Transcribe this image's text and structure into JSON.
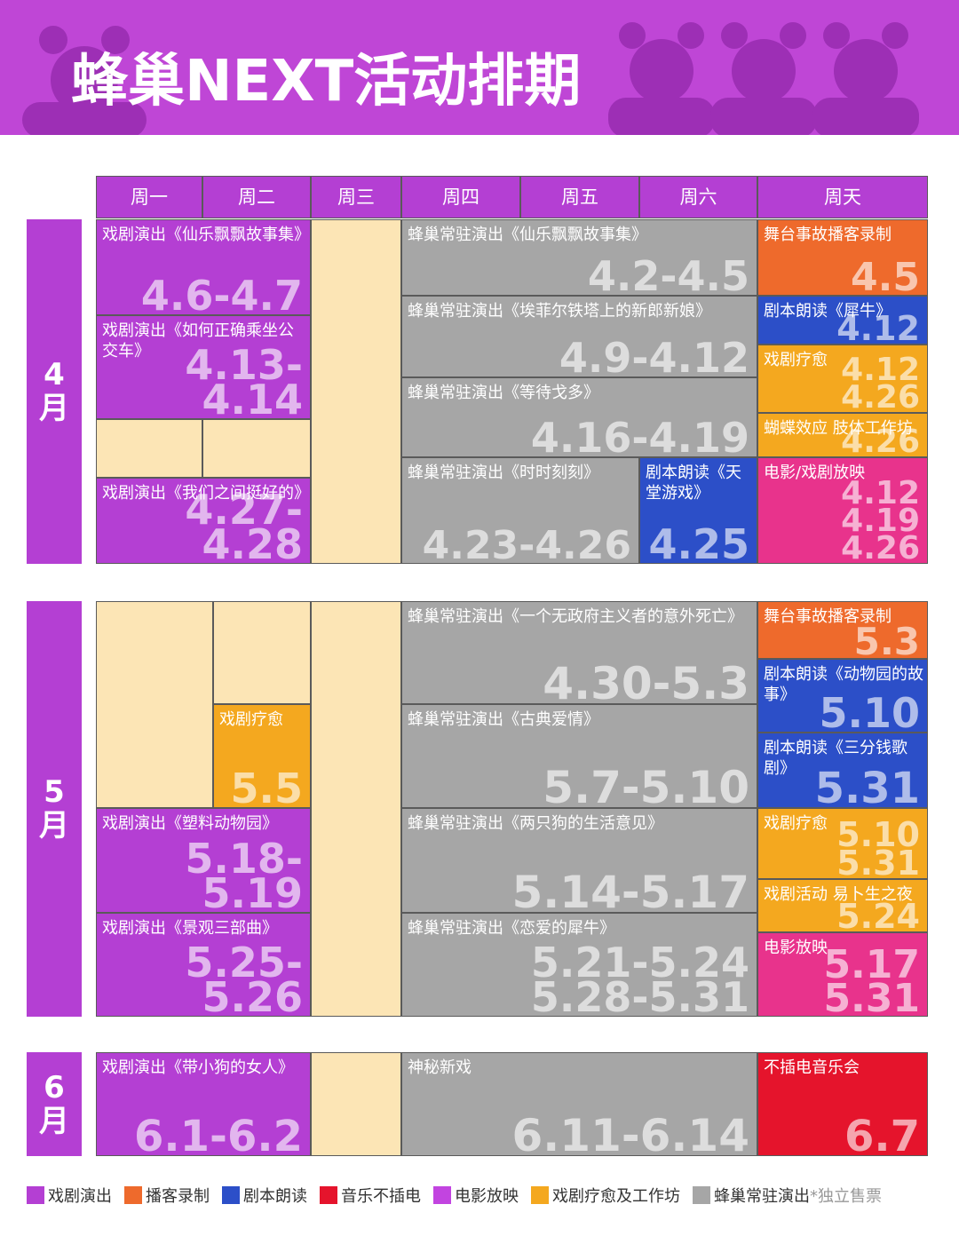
{
  "header": {
    "title": "蜂巢NEXT活动排期"
  },
  "weekdays": [
    "周一",
    "周二",
    "周三",
    "周四",
    "周五",
    "周六",
    "周天"
  ],
  "months": [
    {
      "label": "4月",
      "events": [
        {
          "title": "戏剧演出《仙乐飘飘故事集》",
          "dates": [
            "4.6-4.7"
          ]
        },
        {
          "title": "戏剧演出《如何正确乘坐公交车》",
          "dates": [
            "4.13-4.14"
          ]
        },
        {
          "title": "戏剧演出《我们之间挺好的》",
          "dates": [
            "4.27-4.28"
          ]
        },
        {
          "title": "蜂巢常驻演出《仙乐飘飘故事集》",
          "dates": [
            "4.2-4.5"
          ]
        },
        {
          "title": "蜂巢常驻演出《埃菲尔铁塔上的新郎新娘》",
          "dates": [
            "4.9-4.12"
          ]
        },
        {
          "title": "蜂巢常驻演出《等待戈多》",
          "dates": [
            "4.16-4.19"
          ]
        },
        {
          "title": "蜂巢常驻演出《时时刻刻》",
          "dates": [
            "4.23-4.26"
          ]
        },
        {
          "title": "剧本朗读《天堂游戏》",
          "dates": [
            "4.25"
          ]
        },
        {
          "title": "舞台事故播客录制",
          "dates": [
            "4.5"
          ]
        },
        {
          "title": "剧本朗读《犀牛》",
          "dates": [
            "4.12"
          ]
        },
        {
          "title": "戏剧疗愈",
          "dates": [
            "4.12",
            "4.26"
          ]
        },
        {
          "title": "蝴蝶效应 肢体工作坊",
          "dates": [
            "4.26"
          ]
        },
        {
          "title": "电影/戏剧放映",
          "dates": [
            "4.12",
            "4.19",
            "4.26"
          ]
        }
      ]
    },
    {
      "label": "5月",
      "events": [
        {
          "title": "戏剧疗愈",
          "dates": [
            "5.5"
          ]
        },
        {
          "title": "戏剧演出《塑料动物园》",
          "dates": [
            "5.18-5.19"
          ]
        },
        {
          "title": "戏剧演出《景观三部曲》",
          "dates": [
            "5.25-5.26"
          ]
        },
        {
          "title": "蜂巢常驻演出《一个无政府主义者的意外死亡》",
          "dates": [
            "4.30-5.3"
          ]
        },
        {
          "title": "蜂巢常驻演出《古典爱情》",
          "dates": [
            "5.7-5.10"
          ]
        },
        {
          "title": "蜂巢常驻演出《两只狗的生活意见》",
          "dates": [
            "5.14-5.17"
          ]
        },
        {
          "title": "蜂巢常驻演出《恋爱的犀牛》",
          "dates": [
            "5.21-5.24",
            "5.28-5.31"
          ]
        },
        {
          "title": "舞台事故播客录制",
          "dates": [
            "5.3"
          ]
        },
        {
          "title": "剧本朗读《动物园的故事》",
          "dates": [
            "5.10"
          ]
        },
        {
          "title": "剧本朗读《三分钱歌剧》",
          "dates": [
            "5.31"
          ]
        },
        {
          "title": "戏剧疗愈",
          "dates": [
            "5.10",
            "5.31"
          ]
        },
        {
          "title": "戏剧活动 易卜生之夜",
          "dates": [
            "5.24"
          ]
        },
        {
          "title": "电影放映",
          "dates": [
            "5.17",
            "5.31"
          ]
        }
      ]
    },
    {
      "label": "6月",
      "events": [
        {
          "title": "戏剧演出《带小狗的女人》",
          "dates": [
            "6.1-6.2"
          ]
        },
        {
          "title": "神秘新戏",
          "dates": [
            "6.11-6.14"
          ]
        },
        {
          "title": "不插电音乐会",
          "dates": [
            "6.7"
          ]
        }
      ]
    }
  ],
  "legend": {
    "items": [
      {
        "label": "戏剧演出",
        "color": "#b43fd3"
      },
      {
        "label": "播客录制",
        "color": "#ee6a2c"
      },
      {
        "label": "剧本朗读",
        "color": "#2c4fc8"
      },
      {
        "label": "音乐不插电",
        "color": "#e5142c"
      },
      {
        "label": "电影放映",
        "color": "#c244e0"
      },
      {
        "label": "戏剧疗愈及工作坊",
        "color": "#f4a81f"
      },
      {
        "label": "蜂巢常驻演出",
        "color": "#a6a6a6"
      }
    ],
    "note": "*独立售票"
  }
}
